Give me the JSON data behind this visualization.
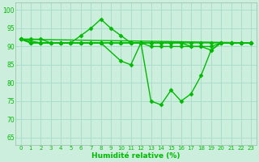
{
  "title": "",
  "xlabel": "Humidité relative (%)",
  "ylabel": "",
  "bg_color": "#cceedd",
  "grid_color": "#aaddcc",
  "line_color": "#00bb00",
  "x_ticks": [
    0,
    1,
    2,
    3,
    4,
    5,
    6,
    7,
    8,
    9,
    10,
    11,
    12,
    13,
    14,
    15,
    16,
    17,
    18,
    19,
    20,
    21,
    22,
    23
  ],
  "y_ticks": [
    65,
    70,
    75,
    80,
    85,
    90,
    95,
    100
  ],
  "xlim": [
    -0.5,
    23.5
  ],
  "ylim": [
    63,
    102
  ],
  "curve1_x": [
    0,
    1,
    2,
    3,
    4,
    5,
    6,
    7,
    8,
    9,
    10,
    11,
    12,
    13,
    14,
    15,
    16,
    17,
    18,
    19,
    20,
    21,
    22,
    23
  ],
  "curve1_y": [
    92,
    92,
    92,
    91,
    91,
    91,
    93,
    95,
    97.5,
    95,
    93,
    91,
    91,
    90,
    90,
    90,
    90,
    90,
    90,
    90,
    91,
    91,
    91,
    91
  ],
  "curve2_x": [
    0,
    1,
    2,
    3,
    4,
    5,
    6,
    7,
    8,
    9,
    10,
    11,
    12,
    13,
    14,
    15,
    16,
    17,
    18,
    19,
    20,
    21,
    22,
    23
  ],
  "curve2_y": [
    92,
    91,
    91,
    91,
    91,
    91,
    91,
    91,
    91,
    91,
    91,
    91,
    91,
    91,
    91,
    91,
    91,
    91,
    91,
    91,
    91,
    91,
    91,
    91
  ],
  "curve3_x": [
    0,
    1,
    2,
    3,
    4,
    5,
    6,
    7,
    8,
    9,
    10,
    11,
    12,
    13,
    14,
    15,
    16,
    17,
    18,
    19,
    20,
    21,
    22,
    23
  ],
  "curve3_y": [
    92,
    91,
    91,
    91,
    91,
    91,
    91,
    91,
    91,
    91,
    91,
    91,
    91,
    91,
    91,
    91,
    91,
    90,
    90,
    89,
    91,
    91,
    91,
    91
  ],
  "curve4_x": [
    0,
    2,
    4,
    6,
    8,
    10,
    11,
    12,
    13,
    14,
    15,
    16,
    17,
    18,
    19,
    20,
    21,
    22,
    23
  ],
  "curve4_y": [
    92,
    91,
    91,
    91,
    91,
    86,
    85,
    91,
    75,
    74,
    78,
    75,
    77,
    82,
    89,
    91,
    91,
    91,
    91
  ],
  "curve5_x": [
    0,
    23
  ],
  "curve5_y": [
    92,
    91
  ]
}
